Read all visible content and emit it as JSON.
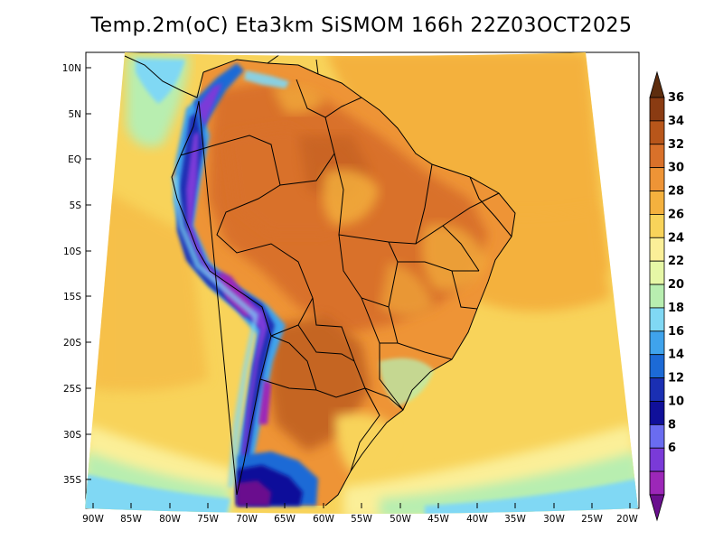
{
  "title": "Temp.2m(oC) Eta3km SiSMOM 166h 22Z03OCT2025",
  "map": {
    "lat_labels": [
      "10N",
      "5N",
      "EQ",
      "5S",
      "10S",
      "15S",
      "20S",
      "25S",
      "30S",
      "35S"
    ],
    "lon_labels": [
      "90W",
      "85W",
      "80W",
      "75W",
      "70W",
      "65W",
      "60W",
      "55W",
      "50W",
      "45W",
      "40W",
      "35W",
      "30W",
      "25W",
      "20W"
    ]
  },
  "colorbar": {
    "labels": [
      "36",
      "34",
      "32",
      "30",
      "28",
      "26",
      "24",
      "22",
      "20",
      "18",
      "16",
      "14",
      "12",
      "10",
      "8",
      "6"
    ],
    "colors": [
      "#5e2d0e",
      "#8a3b12",
      "#b8561a",
      "#d9712a",
      "#ee9436",
      "#f4b13e",
      "#f8d35a",
      "#fbef98",
      "#e6f7a6",
      "#b8eeb0",
      "#80d8f4",
      "#3fa3ec",
      "#1c6ad6",
      "#1a2fb3",
      "#10109a",
      "#6a6cf0",
      "#7a3ad8",
      "#9c27b8",
      "#6a0f8e"
    ]
  }
}
